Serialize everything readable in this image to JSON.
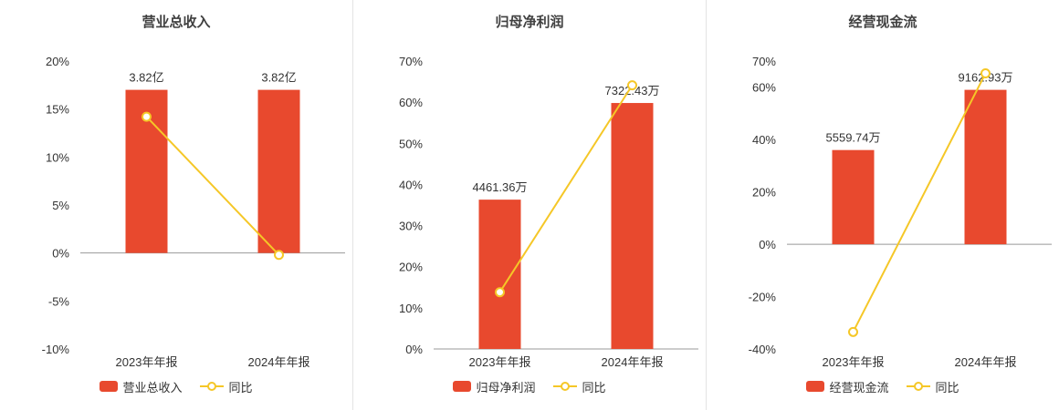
{
  "colors": {
    "bar": "#e8492e",
    "line": "#f5c727",
    "marker_fill": "#ffffff",
    "axis": "#999999",
    "text": "#333333",
    "divider": "#e3e3e3"
  },
  "chart_data": [
    {
      "type": "bar",
      "title": "营业总收入",
      "categories": [
        "2023年年报",
        "2024年年报"
      ],
      "series": [
        {
          "name": "营业总收入",
          "type": "bar",
          "labels": [
            "3.82亿",
            "3.82亿"
          ],
          "values_pct": [
            17,
            17
          ]
        },
        {
          "name": "同比",
          "type": "line",
          "values_pct": [
            14.2,
            -0.2
          ]
        }
      ],
      "ylim": [
        -10,
        20
      ],
      "yticks": [
        20,
        15,
        10,
        5,
        0,
        -5,
        -10
      ],
      "grid": false,
      "legend_position": "bottom"
    },
    {
      "type": "bar",
      "title": "归母净利润",
      "categories": [
        "2023年年报",
        "2024年年报"
      ],
      "series": [
        {
          "name": "归母净利润",
          "type": "bar",
          "labels": [
            "4461.36万",
            "7322.43万"
          ],
          "values_pct": [
            36.3,
            59.8
          ]
        },
        {
          "name": "同比",
          "type": "line",
          "values_pct": [
            13.8,
            64.1
          ]
        }
      ],
      "ylim": [
        0,
        70
      ],
      "yticks": [
        70,
        60,
        50,
        40,
        30,
        20,
        10,
        0
      ],
      "grid": false,
      "legend_position": "bottom"
    },
    {
      "type": "bar",
      "title": "经营现金流",
      "categories": [
        "2023年年报",
        "2024年年报"
      ],
      "series": [
        {
          "name": "经营现金流",
          "type": "bar",
          "labels": [
            "5559.74万",
            "9162.93万"
          ],
          "values_pct": [
            36,
            59
          ]
        },
        {
          "name": "同比",
          "type": "line",
          "values_pct": [
            -33.5,
            65.3
          ]
        }
      ],
      "ylim": [
        -40,
        70
      ],
      "yticks": [
        70,
        60,
        40,
        20,
        0,
        -20,
        -40
      ],
      "grid": false,
      "legend_position": "bottom"
    }
  ]
}
